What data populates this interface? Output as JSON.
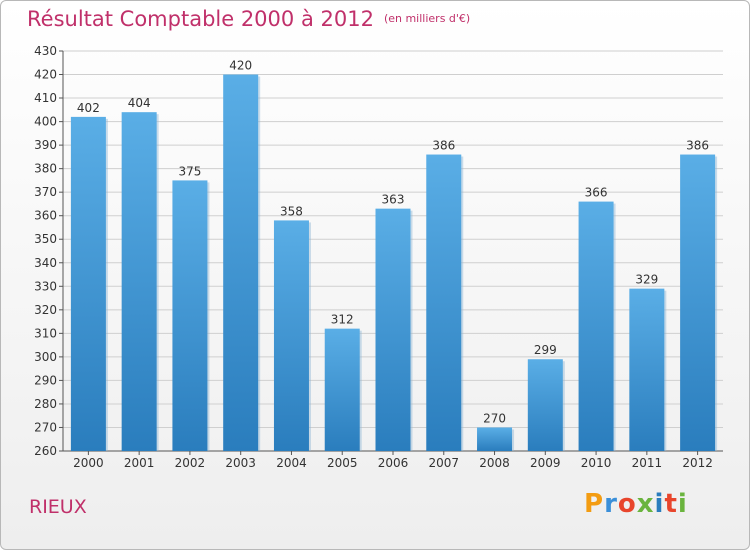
{
  "header": {
    "title": "Résultat Comptable 2000 à 2012",
    "unit_note": "(en milliers d'€)"
  },
  "footer": {
    "town": "RIEUX",
    "logo_text": "Proxiti"
  },
  "colors": {
    "title": "#c0306a",
    "bar_light": "#5aaee6",
    "bar_dark": "#2a7dbd",
    "grid": "#cfcfcf"
  },
  "chart_data": {
    "type": "bar",
    "title": "Résultat Comptable 2000 à 2012",
    "subtitle": "(en milliers d'€)",
    "categories": [
      "2000",
      "2001",
      "2002",
      "2003",
      "2004",
      "2005",
      "2006",
      "2007",
      "2008",
      "2009",
      "2010",
      "2011",
      "2012"
    ],
    "values": [
      402,
      404,
      375,
      420,
      358,
      312,
      363,
      386,
      270,
      299,
      366,
      329,
      386
    ],
    "xlabel": "",
    "ylabel": "",
    "ylim": [
      260,
      430
    ],
    "yticks": [
      260,
      270,
      280,
      290,
      300,
      310,
      320,
      330,
      340,
      350,
      360,
      370,
      380,
      390,
      400,
      410,
      420,
      430
    ],
    "grid": true
  }
}
